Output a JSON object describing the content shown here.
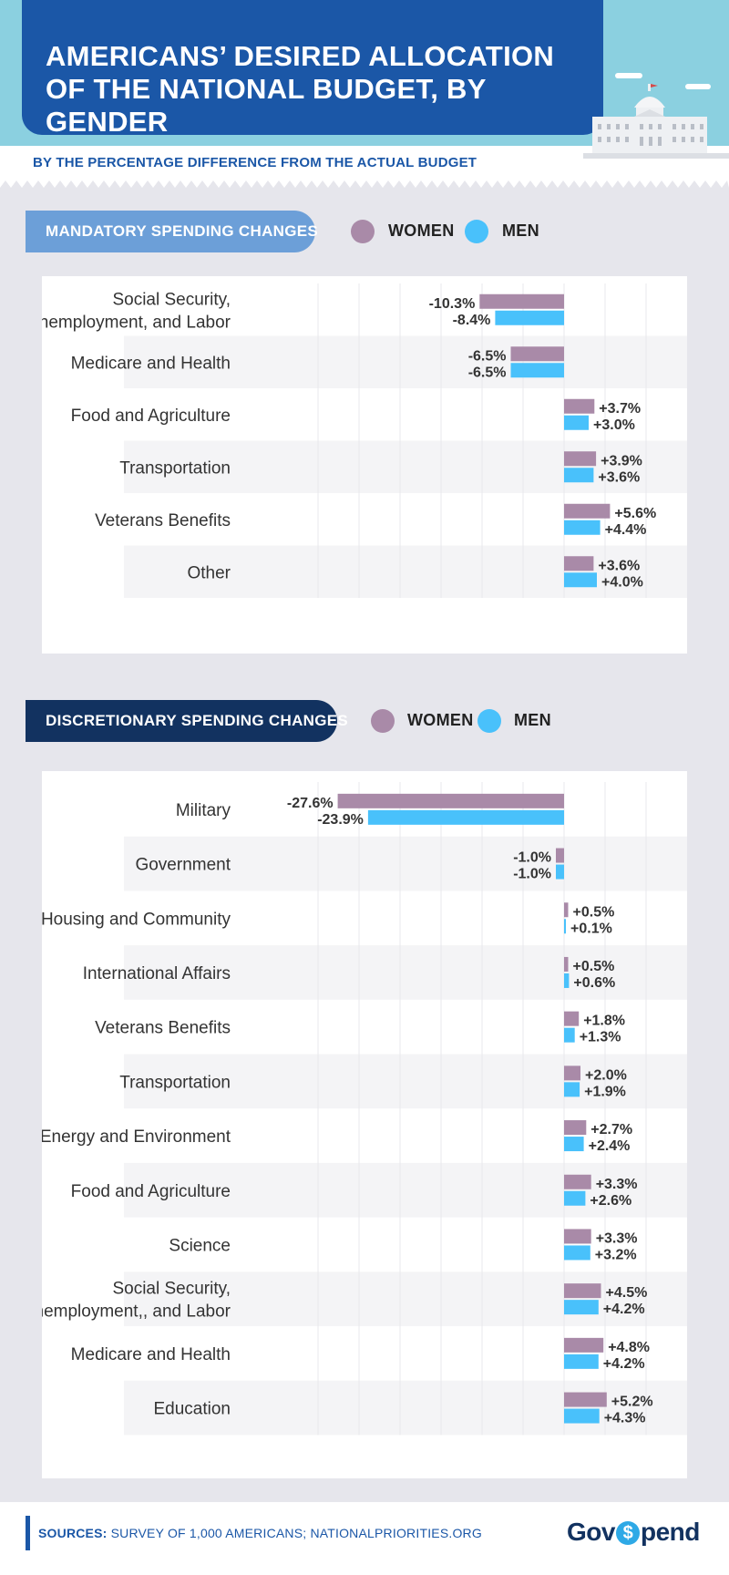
{
  "header": {
    "title": "AMERICANS’ DESIRED ALLOCATION OF THE NATIONAL BUDGET, BY GENDER",
    "subtitle": "BY THE PERCENTAGE DIFFERENCE FROM THE ACTUAL BUDGET"
  },
  "legend": {
    "women": "WOMEN",
    "men": "MEN"
  },
  "colors": {
    "women": "#a98aa8",
    "men": "#49c1fb",
    "brand_blue": "#1b57a7",
    "navy": "#123260",
    "light_blue": "#8bd0e0"
  },
  "sections": {
    "mandatory": {
      "heading": "MANDATORY SPENDING CHANGES"
    },
    "discretionary": {
      "heading": "DISCRETIONARY SPENDING CHANGES"
    }
  },
  "chart_data": [
    {
      "type": "bar",
      "orientation": "horizontal",
      "title": "MANDATORY SPENDING CHANGES",
      "categories": [
        "Social Security,\nUnemployment, and Labor",
        "Medicare and Health",
        "Food and Agriculture",
        "Transportation",
        "Veterans Benefits",
        "Other"
      ],
      "series": [
        {
          "name": "WOMEN",
          "values": [
            -10.3,
            -6.5,
            3.7,
            3.9,
            5.6,
            3.6
          ]
        },
        {
          "name": "MEN",
          "values": [
            -8.4,
            -6.5,
            3.0,
            3.6,
            4.4,
            4.0
          ]
        }
      ],
      "xlim": [
        -30,
        10
      ],
      "grid": true
    },
    {
      "type": "bar",
      "orientation": "horizontal",
      "title": "DISCRETIONARY SPENDING CHANGES",
      "categories": [
        "Military",
        "Government",
        "Housing and Community",
        "International Affairs",
        "Veterans Benefits",
        "Transportation",
        "Energy and Environment",
        "Food and Agriculture",
        "Science",
        "Social Security,\nUnemployment,, and Labor",
        "Medicare and Health",
        "Education"
      ],
      "series": [
        {
          "name": "WOMEN",
          "values": [
            -27.6,
            -1.0,
            0.5,
            0.5,
            1.8,
            2.0,
            2.7,
            3.3,
            3.3,
            4.5,
            4.8,
            5.2
          ]
        },
        {
          "name": "MEN",
          "values": [
            -23.9,
            -1.0,
            0.1,
            0.6,
            1.3,
            1.9,
            2.4,
            2.6,
            3.2,
            4.2,
            4.2,
            4.3
          ]
        }
      ],
      "xlim": [
        -30,
        10
      ],
      "grid": true
    }
  ],
  "footer": {
    "sources_label": "SOURCES:",
    "sources_text": " SURVEY OF 1,000 AMERICANS; NATIONALPRIORITIES.ORG",
    "brand_prefix": "Gov",
    "brand_symbol": "$",
    "brand_suffix": "pend"
  }
}
